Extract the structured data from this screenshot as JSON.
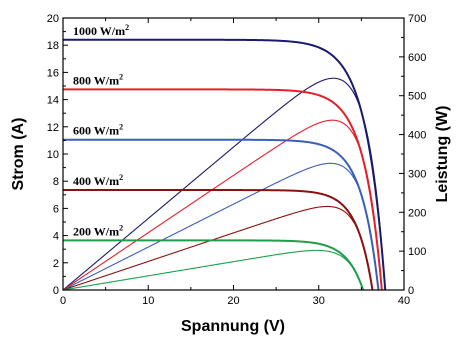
{
  "chart_data": {
    "type": "line",
    "xlabel": "Spannung (V)",
    "ylabel_left": "Strom (A)",
    "ylabel_right": "Leistung (W)",
    "xlim": [
      0,
      40
    ],
    "ylim_left": [
      0,
      20
    ],
    "ylim_right": [
      0,
      700
    ],
    "xticks": [
      "0",
      "10",
      "20",
      "30",
      "40"
    ],
    "yticks_left": [
      "0",
      "2",
      "4",
      "6",
      "8",
      "10",
      "12",
      "14",
      "16",
      "18",
      "20"
    ],
    "yticks_right": [
      "0",
      "100",
      "200",
      "300",
      "400",
      "500",
      "600",
      "700"
    ],
    "grid": false,
    "series": [
      {
        "irradiance": "1000",
        "unit": "W/m",
        "sup": "2",
        "color": "#1a1a6e",
        "isc": 18.4,
        "voc": 37.8,
        "pmp": 545,
        "vmp": 31.3
      },
      {
        "irradiance": "800",
        "unit": "W/m",
        "sup": "2",
        "color": "#e4202a",
        "isc": 14.75,
        "voc": 37.4,
        "pmp": 437,
        "vmp": 30.8
      },
      {
        "irradiance": "600",
        "unit": "W/m",
        "sup": "2",
        "color": "#3a5fb8",
        "isc": 11.05,
        "voc": 37.0,
        "pmp": 326,
        "vmp": 30.6
      },
      {
        "irradiance": "400",
        "unit": "W/m",
        "sup": "2",
        "color": "#8b1010",
        "isc": 7.35,
        "voc": 36.3,
        "pmp": 215,
        "vmp": 30.4
      },
      {
        "irradiance": "200",
        "unit": "W/m",
        "sup": "2",
        "color": "#1e9e4a",
        "isc": 3.65,
        "voc": 35.2,
        "pmp": 102,
        "vmp": 29.8
      }
    ]
  }
}
